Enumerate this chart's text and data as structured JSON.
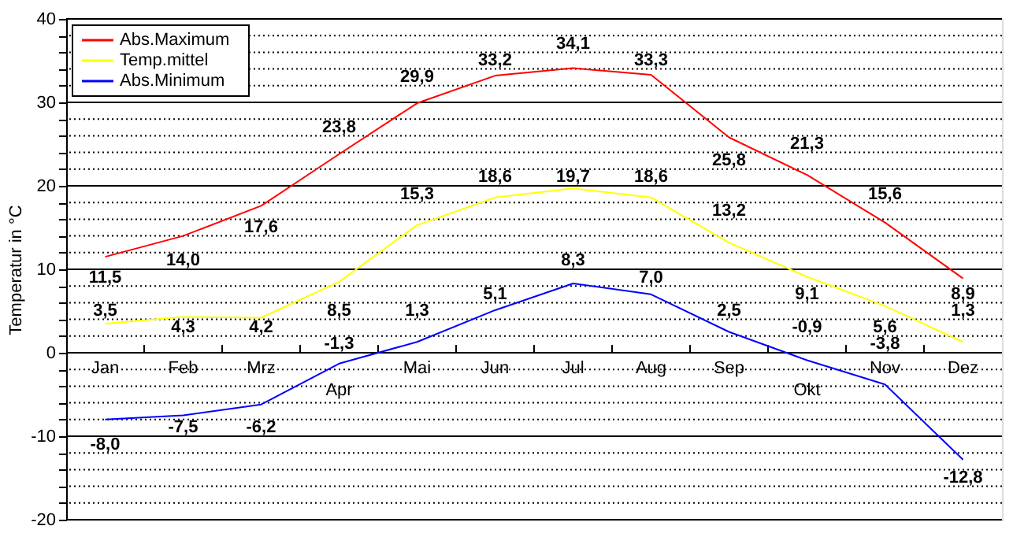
{
  "chart_data": {
    "type": "line",
    "ylabel": "Temperatur in °C",
    "categories": [
      "Jan",
      "Feb",
      "Mrz",
      "Apr",
      "Mai",
      "Jun",
      "Jul",
      "Aug",
      "Sep",
      "Okt",
      "Nov",
      "Dez"
    ],
    "series": [
      {
        "name": "Abs.Maximum",
        "color": "#ff0000",
        "values": [
          11.5,
          14.0,
          17.6,
          23.8,
          29.9,
          33.2,
          34.1,
          33.3,
          25.8,
          21.3,
          15.6,
          8.9
        ],
        "value_labels": [
          "11,5",
          "14,0",
          "17,6",
          "23,8",
          "29,9",
          "33,2",
          "34,1",
          "33,3",
          "25,8",
          "21,3",
          "15,6",
          "8,9"
        ]
      },
      {
        "name": "Temp.mittel",
        "color": "#ffff00",
        "values": [
          3.5,
          4.3,
          4.2,
          8.5,
          15.3,
          18.6,
          19.7,
          18.6,
          13.2,
          9.1,
          5.6,
          1.3
        ],
        "value_labels": [
          "3,5",
          "4,3",
          "4,2",
          "8,5",
          "15,3",
          "18,6",
          "19,7",
          "18,6",
          "13,2",
          "9,1",
          "5,6",
          "1,3"
        ]
      },
      {
        "name": "Abs.Minimum",
        "color": "#0000ff",
        "values": [
          -8.0,
          -7.5,
          -6.2,
          -1.3,
          1.3,
          5.1,
          8.3,
          7.0,
          2.5,
          -0.9,
          -3.8,
          -12.8
        ],
        "value_labels": [
          "-8,0",
          "-7,5",
          "-6,2",
          "-1,3",
          "1,3",
          "5,1",
          "8,3",
          "7,0",
          "2,5",
          "-0,9",
          "-3,8",
          "-12,8"
        ]
      }
    ],
    "ylim": [
      -20,
      40
    ],
    "yticks": [
      -20,
      {
        "value": -18,
        "label": null
      },
      {
        "value": -16,
        "label": null
      },
      {
        "value": -14,
        "label": null
      },
      {
        "value": -12,
        "label": null
      },
      -10,
      {
        "value": -8,
        "label": null
      },
      {
        "value": -6,
        "label": null
      },
      {
        "value": -4,
        "label": null
      },
      {
        "value": -2,
        "label": null
      },
      0,
      {
        "value": 2,
        "label": null
      },
      {
        "value": 4,
        "label": null
      },
      {
        "value": 6,
        "label": null
      },
      {
        "value": 8,
        "label": null
      },
      10,
      {
        "value": 12,
        "label": null
      },
      {
        "value": 14,
        "label": null
      },
      {
        "value": 16,
        "label": null
      },
      {
        "value": 18,
        "label": null
      },
      20,
      {
        "value": 22,
        "label": null
      },
      {
        "value": 24,
        "label": null
      },
      {
        "value": 26,
        "label": null
      },
      {
        "value": 28,
        "label": null
      },
      30,
      {
        "value": 32,
        "label": null
      },
      {
        "value": 34,
        "label": null
      },
      {
        "value": 36,
        "label": null
      },
      {
        "value": 38,
        "label": null
      },
      40
    ],
    "grid": "y",
    "legend": "top left",
    "marker": "none",
    "line_style": "solid"
  }
}
